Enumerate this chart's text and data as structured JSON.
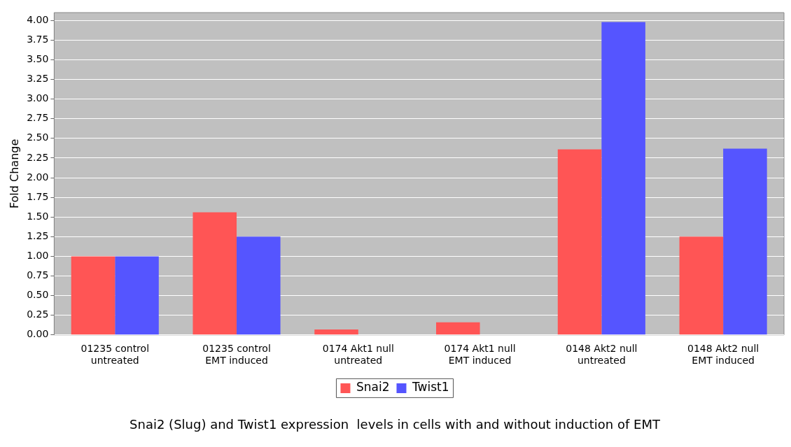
{
  "chart_data": {
    "type": "bar",
    "title": "Snai2 (Slug) and Twist1 expression  levels in cells with and without induction of EMT",
    "ylabel": "Fold Change",
    "categories": [
      "01235 control untreated",
      "01235 control EMT induced",
      "0174 Akt1 null untreated",
      "0174 Akt1 null EMT induced",
      "0148 Akt2 null untreated",
      "0148 Akt2 null EMT induced"
    ],
    "series": [
      {
        "name": "Snai2",
        "color": "#ff5555",
        "values": [
          1.0,
          1.56,
          0.07,
          0.16,
          2.36,
          1.25
        ]
      },
      {
        "name": "Twist1",
        "color": "#5555ff",
        "values": [
          1.0,
          1.25,
          0,
          0,
          3.98,
          2.37
        ]
      }
    ],
    "ylim": [
      0,
      4.1
    ],
    "yticks": [
      {
        "value": 0,
        "label": "0.00"
      },
      {
        "value": 0.25,
        "label": "0.25"
      },
      {
        "value": 0.5,
        "label": "0.50"
      },
      {
        "value": 0.75,
        "label": "0.75"
      },
      {
        "value": 1,
        "label": "1.00"
      },
      {
        "value": 1.25,
        "label": "1.25"
      },
      {
        "value": 1.5,
        "label": "1.50"
      },
      {
        "value": 1.75,
        "label": "1.75"
      },
      {
        "value": 2,
        "label": "2.00"
      },
      {
        "value": 2.25,
        "label": "2.25"
      },
      {
        "value": 2.5,
        "label": "2.50"
      },
      {
        "value": 2.75,
        "label": "2.75"
      },
      {
        "value": 3,
        "label": "3.00"
      },
      {
        "value": 3.25,
        "label": "3.25"
      },
      {
        "value": 3.5,
        "label": "3.50"
      },
      {
        "value": 3.75,
        "label": "3.75"
      },
      {
        "value": 4,
        "label": "4.00"
      }
    ],
    "grid": "y",
    "legend": "bottom"
  }
}
